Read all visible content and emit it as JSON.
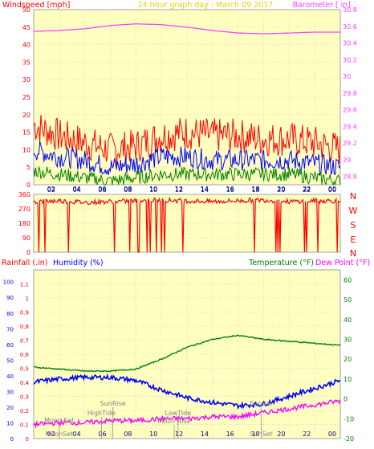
{
  "header": {
    "left": "Windspeed [mph]",
    "center": "24 hour graph day : March 09 2017",
    "right": "Barometer [ in]"
  },
  "colors": {
    "panel_bg": "#ffffc0",
    "panel_border": "#a0a0a0",
    "wind_gust": "#ff0000",
    "wind_avg": "#0000ff",
    "wind_low": "#008000",
    "barometer": "#ff40ff",
    "direction": "#ff0000",
    "rainfall": "#ff0000",
    "humidity": "#0000ff",
    "temperature": "#008000",
    "dewpoint": "#ff00ff",
    "annotation": "#808080"
  },
  "mid_labels": {
    "rainfall": "Rainfall (.in)",
    "humidity": "Humidity (%)",
    "temperature": "Temperature (°F)",
    "dewpoint": "Dew Point (°F)"
  },
  "compass": [
    "N",
    "W",
    "S",
    "E",
    "N"
  ],
  "annotations": [
    {
      "text": "Moon Set",
      "hour": 2.0,
      "line": "top"
    },
    {
      "text": "HighTide",
      "hour": 5.3,
      "line": "mid"
    },
    {
      "text": "SunRise",
      "hour": 6.2,
      "line": "upper"
    },
    {
      "text": "LowTide",
      "hour": 11.3,
      "line": "mid"
    },
    {
      "text": "Moon Rise",
      "hour": 11.0,
      "line": "bottom"
    },
    {
      "text": "SunSet",
      "hour": 17.8,
      "line": "upper"
    },
    {
      "text": "MoonSet",
      "hour": 2.0,
      "line": "axis"
    },
    {
      "text": "SunSet",
      "hour": 17.8,
      "line": "axis"
    }
  ],
  "chart_data": [
    {
      "type": "line",
      "panel": "wind",
      "x_ticks": [
        "02",
        "04",
        "06",
        "08",
        "10",
        "12",
        "14",
        "16",
        "18",
        "20",
        "22",
        "00"
      ],
      "ylabel": "Windspeed [mph]",
      "ylim": [
        0,
        50
      ],
      "y_ticks": [
        0,
        5,
        10,
        15,
        20,
        25,
        30,
        35,
        40,
        45,
        50
      ],
      "y2label": "Barometer [ in]",
      "y2lim": [
        28.7,
        30.8
      ],
      "y2_ticks": [
        "28.8",
        "29",
        "29.2",
        "29.4",
        "29.6",
        "29.8",
        "30",
        "30.2",
        "30.4",
        "30.6",
        "30.8"
      ],
      "series": [
        {
          "name": "Barometer",
          "axis": "right",
          "x": [
            0,
            2,
            4,
            6,
            8,
            10,
            12,
            14,
            16,
            18,
            20,
            22,
            24
          ],
          "values": [
            30.54,
            30.55,
            30.57,
            30.61,
            30.63,
            30.62,
            30.59,
            30.55,
            30.52,
            30.51,
            30.52,
            30.53,
            30.53
          ]
        },
        {
          "axis": "left",
          "x": [
            0,
            2,
            4,
            6,
            8,
            10,
            12,
            14,
            16,
            18,
            20,
            22,
            24
          ],
          "values": [
            17,
            14,
            12,
            10,
            11,
            14,
            15,
            14,
            14,
            13,
            13,
            12,
            10
          ]
        },
        {
          "axis": "left",
          "x": [
            0,
            2,
            4,
            6,
            8,
            10,
            12,
            14,
            16,
            18,
            20,
            22,
            24
          ],
          "values": [
            10,
            8,
            7,
            5,
            6,
            8,
            8,
            7,
            7,
            7,
            7,
            6,
            5
          ]
        },
        {
          "axis": "left",
          "x": [
            0,
            2,
            4,
            6,
            8,
            10,
            12,
            14,
            16,
            18,
            20,
            22,
            24
          ],
          "values": [
            4,
            3,
            2,
            1,
            2,
            3,
            3,
            3,
            3,
            3,
            3,
            2,
            1
          ]
        }
      ]
    },
    {
      "type": "line",
      "panel": "direction",
      "ylim": [
        0,
        360
      ],
      "y_ticks": [
        0,
        90,
        180,
        270,
        360
      ],
      "series": [
        {
          "x": [
            0,
            2,
            4,
            6,
            8,
            10,
            12,
            14,
            16,
            18,
            20,
            22,
            24
          ],
          "values": [
            315,
            320,
            310,
            315,
            320,
            325,
            320,
            315,
            320,
            325,
            315,
            320,
            320
          ]
        }
      ]
    },
    {
      "type": "line",
      "panel": "climate",
      "x_ticks": [
        "02",
        "04",
        "06",
        "08",
        "10",
        "12",
        "14",
        "16",
        "18",
        "20",
        "22",
        "00"
      ],
      "ylabel": "Rainfall (.in)",
      "ylim": [
        0,
        1.2
      ],
      "y_ticks": [
        "0",
        "0.1",
        "0.2",
        "0.3",
        "0.4",
        "0.5",
        "0.6",
        "0.7",
        "0.8",
        "0.9",
        "1",
        "1.1"
      ],
      "humidity_ticks": [
        0,
        10,
        20,
        30,
        40,
        50,
        60,
        70,
        80,
        90,
        100
      ],
      "y2label": "Temperature (°F)",
      "y2lim": [
        -20,
        65
      ],
      "y2_ticks": [
        -20,
        -10,
        0,
        10,
        20,
        30,
        40,
        50,
        60
      ],
      "series": [
        {
          "name": "Humidity (%)",
          "axis": "humidity",
          "x": [
            0,
            2,
            4,
            6,
            8,
            10,
            12,
            14,
            16,
            18,
            20,
            22,
            24
          ],
          "values": [
            36,
            38,
            39,
            39,
            37,
            31,
            26,
            23,
            21,
            22,
            27,
            32,
            37
          ]
        },
        {
          "name": "Temperature (°F)",
          "axis": "right",
          "x": [
            0,
            2,
            4,
            6,
            8,
            10,
            12,
            14,
            16,
            18,
            20,
            22,
            24
          ],
          "values": [
            16,
            15,
            14,
            14,
            15,
            20,
            26,
            30,
            32,
            30,
            29,
            28,
            27
          ]
        },
        {
          "name": "Dew Point (°F)",
          "axis": "right",
          "x": [
            0,
            2,
            4,
            6,
            8,
            10,
            12,
            14,
            16,
            18,
            20,
            22,
            24
          ],
          "values": [
            -13,
            -12,
            -12,
            -11,
            -11,
            -10,
            -10,
            -9,
            -9,
            -7,
            -5,
            -3,
            -1
          ]
        }
      ]
    }
  ]
}
